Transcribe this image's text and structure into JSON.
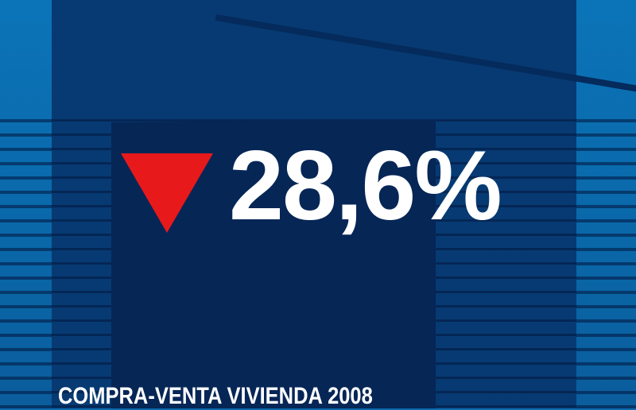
{
  "graphic": {
    "indicator": "down-triangle-icon",
    "indicator_color": "#e8191b",
    "value": "28,6%",
    "caption": "COMPRA-VENTA VIVIENDA 2008"
  }
}
